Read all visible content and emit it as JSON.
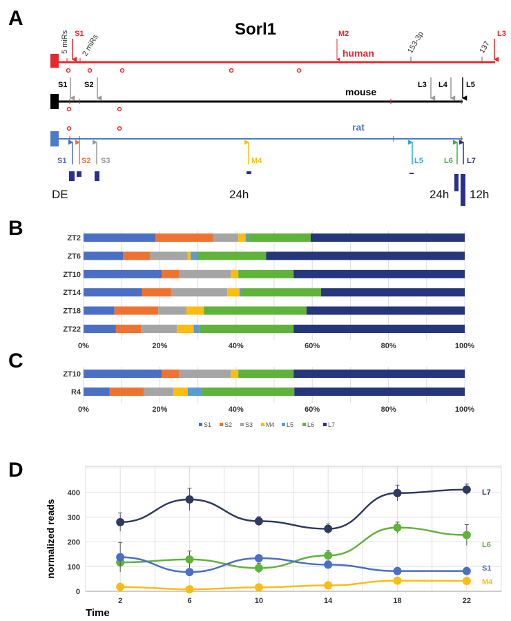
{
  "panels": {
    "a": "A",
    "b": "B",
    "c": "C",
    "d": "D"
  },
  "panel_a": {
    "title": "Sorl1",
    "human": {
      "label": "human",
      "color": "#e8262b",
      "annotations": [
        "5 miRs",
        "2 miRs",
        "153-3p",
        "137"
      ],
      "sites": [
        "S1",
        "M2",
        "L3"
      ]
    },
    "mouse": {
      "label": "mouse",
      "color": "#000000",
      "sites": [
        "S1",
        "S2",
        "L3",
        "L4",
        "L5"
      ]
    },
    "rat": {
      "label": "rat",
      "color": "#4a7bc4",
      "sites": [
        "S1",
        "S2",
        "S3",
        "M4",
        "L5",
        "L6",
        "L7"
      ]
    },
    "bottom_labels": [
      "DE",
      "24h",
      "24h",
      "12h"
    ]
  },
  "colors": {
    "S1": "#4a6fc4",
    "S2": "#ee7330",
    "S3": "#a5a5a5",
    "M4": "#fbbd0f",
    "L5": "#5b9bd5",
    "L6": "#5fb33a",
    "L7": "#26367a"
  },
  "chart_data": [
    {
      "type": "bar",
      "stacked": true,
      "orientation": "horizontal",
      "panel": "B",
      "categories": [
        "ZT2",
        "ZT6",
        "ZT10",
        "ZT14",
        "ZT18",
        "ZT22"
      ],
      "series": [
        {
          "name": "S1",
          "values": [
            18.9,
            10.4,
            20.5,
            15.3,
            8.1,
            8.5
          ]
        },
        {
          "name": "S2",
          "values": [
            15.1,
            7.1,
            4.5,
            7.7,
            11.5,
            6.6
          ]
        },
        {
          "name": "S3",
          "values": [
            6.6,
            9.8,
            13.6,
            14.7,
            7.4,
            9.4
          ]
        },
        {
          "name": "M4",
          "values": [
            1.9,
            0.8,
            2.0,
            3.2,
            4.6,
            4.4
          ]
        },
        {
          "name": "L5",
          "values": [
            0.7,
            1.7,
            0.0,
            0.5,
            0.0,
            1.4
          ]
        },
        {
          "name": "L6",
          "values": [
            16.4,
            18.1,
            14.5,
            20.9,
            26.9,
            24.8
          ]
        },
        {
          "name": "L7",
          "values": [
            40.4,
            52.1,
            44.9,
            37.7,
            41.5,
            44.9
          ]
        }
      ],
      "xlim": [
        0,
        100
      ],
      "ticks": [
        "0%",
        "20%",
        "40%",
        "60%",
        "80%",
        "100%"
      ],
      "grid": true
    },
    {
      "type": "bar",
      "stacked": true,
      "orientation": "horizontal",
      "panel": "C",
      "categories": [
        "ZT10",
        "R4"
      ],
      "series": [
        {
          "name": "S1",
          "values": [
            20.5,
            6.8
          ]
        },
        {
          "name": "S2",
          "values": [
            4.5,
            9.0
          ]
        },
        {
          "name": "S3",
          "values": [
            13.6,
            7.8
          ]
        },
        {
          "name": "M4",
          "values": [
            2.0,
            3.7
          ]
        },
        {
          "name": "L5",
          "values": [
            0.0,
            3.8
          ]
        },
        {
          "name": "L6",
          "values": [
            14.5,
            24.2
          ]
        },
        {
          "name": "L7",
          "values": [
            44.9,
            44.7
          ]
        }
      ],
      "xlim": [
        0,
        100
      ],
      "ticks": [
        "0%",
        "20%",
        "40%",
        "60%",
        "80%",
        "100%"
      ],
      "grid": true,
      "legend": [
        "S1",
        "S2",
        "S3",
        "M4",
        "L5",
        "L6",
        "L7"
      ],
      "legend_position": "bottom"
    },
    {
      "type": "line",
      "panel": "D",
      "xlabel": "Time",
      "ylabel": "normalized reads",
      "x": [
        2,
        6,
        10,
        14,
        18,
        22
      ],
      "xlim": [
        0,
        24
      ],
      "ylim": [
        0,
        500
      ],
      "xticks": [
        "2",
        "6",
        "10",
        "14",
        "18",
        "22"
      ],
      "yticks": [
        "0",
        "100",
        "200",
        "300",
        "400"
      ],
      "grid": true,
      "series": [
        {
          "name": "L7",
          "color": "#2e3b5e",
          "values": [
            280,
            372,
            284,
            253,
            398,
            412
          ],
          "err": [
            37,
            45,
            18,
            20,
            32,
            22
          ]
        },
        {
          "name": "L6",
          "color": "#5fb33a",
          "values": [
            117,
            129,
            94,
            145,
            258,
            228
          ],
          "err": [
            8,
            34,
            20,
            20,
            22,
            42
          ]
        },
        {
          "name": "S1",
          "color": "#4a6fc4",
          "values": [
            138,
            78,
            134,
            108,
            82,
            82
          ],
          "err": [
            60,
            8,
            10,
            15,
            8,
            8
          ]
        },
        {
          "name": "M4",
          "color": "#fbbd0f",
          "values": [
            18,
            8,
            16,
            24,
            43,
            42
          ],
          "err": [
            8,
            5,
            6,
            8,
            10,
            8
          ]
        }
      ]
    }
  ]
}
